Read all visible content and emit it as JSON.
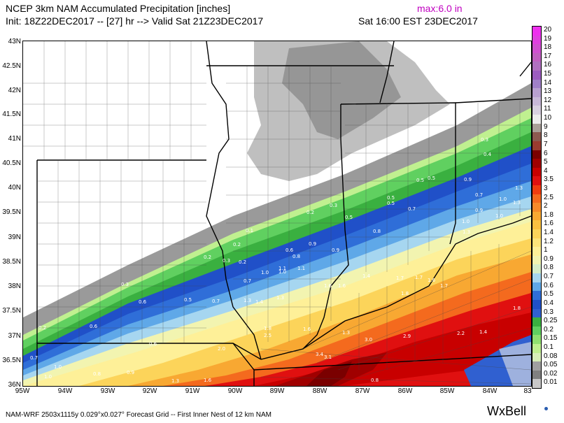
{
  "header": {
    "title": "NCEP 3km NAM Accumulated Precipitation [inches]",
    "init": "Init: 18Z22DEC2017 -- [27] hr --> Valid Sat 21Z23DEC2017",
    "max": "max:6.0 in",
    "local_time": "Sat 16:00 EST 23DEC2017"
  },
  "map": {
    "lat_labels": [
      "43N",
      "42.5N",
      "42N",
      "41.5N",
      "41N",
      "40.5N",
      "40N",
      "39.5N",
      "39N",
      "38.5N",
      "38N",
      "37.5N",
      "37N",
      "36.5N",
      "36N"
    ],
    "lon_labels": [
      "95W",
      "94W",
      "93W",
      "92W",
      "91W",
      "90W",
      "89W",
      "88W",
      "87W",
      "86W",
      "85W",
      "84W",
      "83"
    ],
    "contour_labels": [
      "0.2",
      "0.3",
      "0.6",
      "0.6",
      "0.6",
      "0.7",
      "0.8",
      "0.9",
      "1.0",
      "1.0",
      "1.3",
      "0.1",
      "0.2",
      "0.2",
      "0.2",
      "0.3",
      "0.5",
      "0.7",
      "0.7",
      "0.8",
      "1.0",
      "1.3",
      "1.4",
      "1.1",
      "1.3",
      "1.6",
      "1.8",
      "2.0",
      "2.5",
      "1.6",
      "0.2",
      "0.3",
      "0.5",
      "0.6",
      "0.5",
      "0.5",
      "0.7",
      "0.8",
      "0.9",
      "1.0",
      "1.1",
      "1.4",
      "1.6",
      "1.7",
      "1.8",
      "3.0",
      "2.9",
      "3.4",
      "3.1",
      "0.3",
      "0.4",
      "0.5",
      "0.5",
      "0.7",
      "0.9",
      "1.0",
      "1.7",
      "1.6",
      "1.7",
      "1.8",
      "2.2",
      "1.4",
      "1.3",
      "0.8",
      "1.0",
      "1.3",
      "1.3",
      "1.3",
      "1.6",
      "0.9",
      "0.9",
      "1.0"
    ]
  },
  "colorbar": {
    "labels": [
      "20",
      "19",
      "18",
      "17",
      "16",
      "15",
      "14",
      "13",
      "12",
      "11",
      "10",
      "9",
      "8",
      "7",
      "6",
      "5",
      "4",
      "3.5",
      "3",
      "2.5",
      "2",
      "1.8",
      "1.6",
      "1.4",
      "1.2",
      "1",
      "0.9",
      "0.8",
      "0.7",
      "0.6",
      "0.5",
      "0.4",
      "0.3",
      "0.25",
      "0.2",
      "0.15",
      "0.1",
      "0.08",
      "0.05",
      "0.02",
      "0.01"
    ],
    "colors": [
      "#ee30ee",
      "#e040e0",
      "#d050d0",
      "#c060c0",
      "#b070c0",
      "#9c5cc0",
      "#a080c8",
      "#b8a0d0",
      "#c8b8d8",
      "#d8d0e0",
      "#ececec",
      "#a8a098",
      "#8c5a50",
      "#9a3c30",
      "#7a0000",
      "#a00000",
      "#c80000",
      "#e01010",
      "#f03c10",
      "#f46a1e",
      "#f68a2a",
      "#f8a832",
      "#fac040",
      "#fcd45a",
      "#fde47a",
      "#fef098",
      "#f2f4b0",
      "#d6eec8",
      "#a6d6f0",
      "#5fa8e8",
      "#2f6ed8",
      "#2050c8",
      "#3060d0",
      "#3ab040",
      "#60d060",
      "#90e070",
      "#c0f090",
      "#d8f0b8",
      "#a0a0a0",
      "#808080",
      "#c8c8c8"
    ]
  },
  "footer": {
    "text": "NAM-WRF 2503x1115y 0.029°x0.027° Forecast Grid -- First Inner Nest of 12 km NAM",
    "brand": "WxBell"
  }
}
